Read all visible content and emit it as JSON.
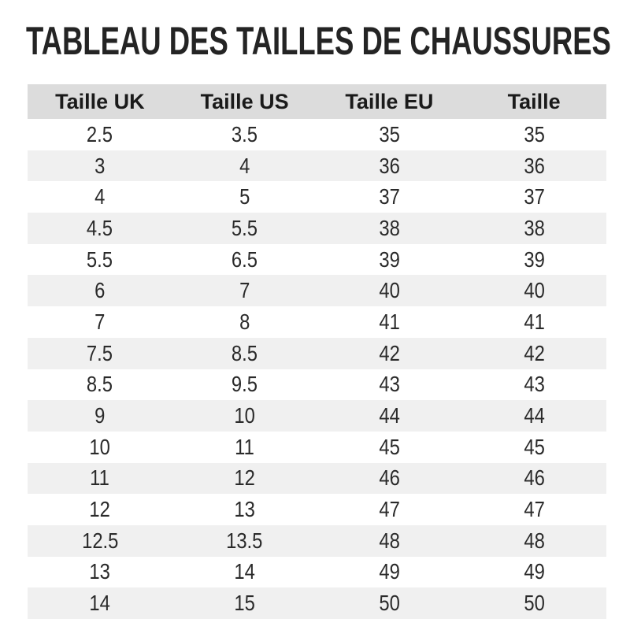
{
  "chart_data": {
    "type": "table",
    "title": "TABLEAU DES TAILLES DE CHAUSSURES",
    "columns": [
      "Taille UK",
      "Taille US",
      "Taille EU",
      "Taille"
    ],
    "rows": [
      [
        "2.5",
        "3.5",
        "35",
        "35"
      ],
      [
        "3",
        "4",
        "36",
        "36"
      ],
      [
        "4",
        "5",
        "37",
        "37"
      ],
      [
        "4.5",
        "5.5",
        "38",
        "38"
      ],
      [
        "5.5",
        "6.5",
        "39",
        "39"
      ],
      [
        "6",
        "7",
        "40",
        "40"
      ],
      [
        "7",
        "8",
        "41",
        "41"
      ],
      [
        "7.5",
        "8.5",
        "42",
        "42"
      ],
      [
        "8.5",
        "9.5",
        "43",
        "43"
      ],
      [
        "9",
        "10",
        "44",
        "44"
      ],
      [
        "10",
        "11",
        "45",
        "45"
      ],
      [
        "11",
        "12",
        "46",
        "46"
      ],
      [
        "12",
        "13",
        "47",
        "47"
      ],
      [
        "12.5",
        "13.5",
        "48",
        "48"
      ],
      [
        "13",
        "14",
        "49",
        "49"
      ],
      [
        "14",
        "15",
        "50",
        "50"
      ]
    ],
    "layout_hints": {
      "zebra_striping": true,
      "columns_equal_width": true,
      "text_alignment": "center"
    }
  },
  "colors": {
    "page_bg": "#ffffff",
    "title_text": "#242424",
    "header_bg": "#dcdcdc",
    "header_text": "#1a1a1a",
    "stripe_bg": "#f0f0f0",
    "row_bg": "#ffffff",
    "cell_text": "#2a2a2a"
  }
}
